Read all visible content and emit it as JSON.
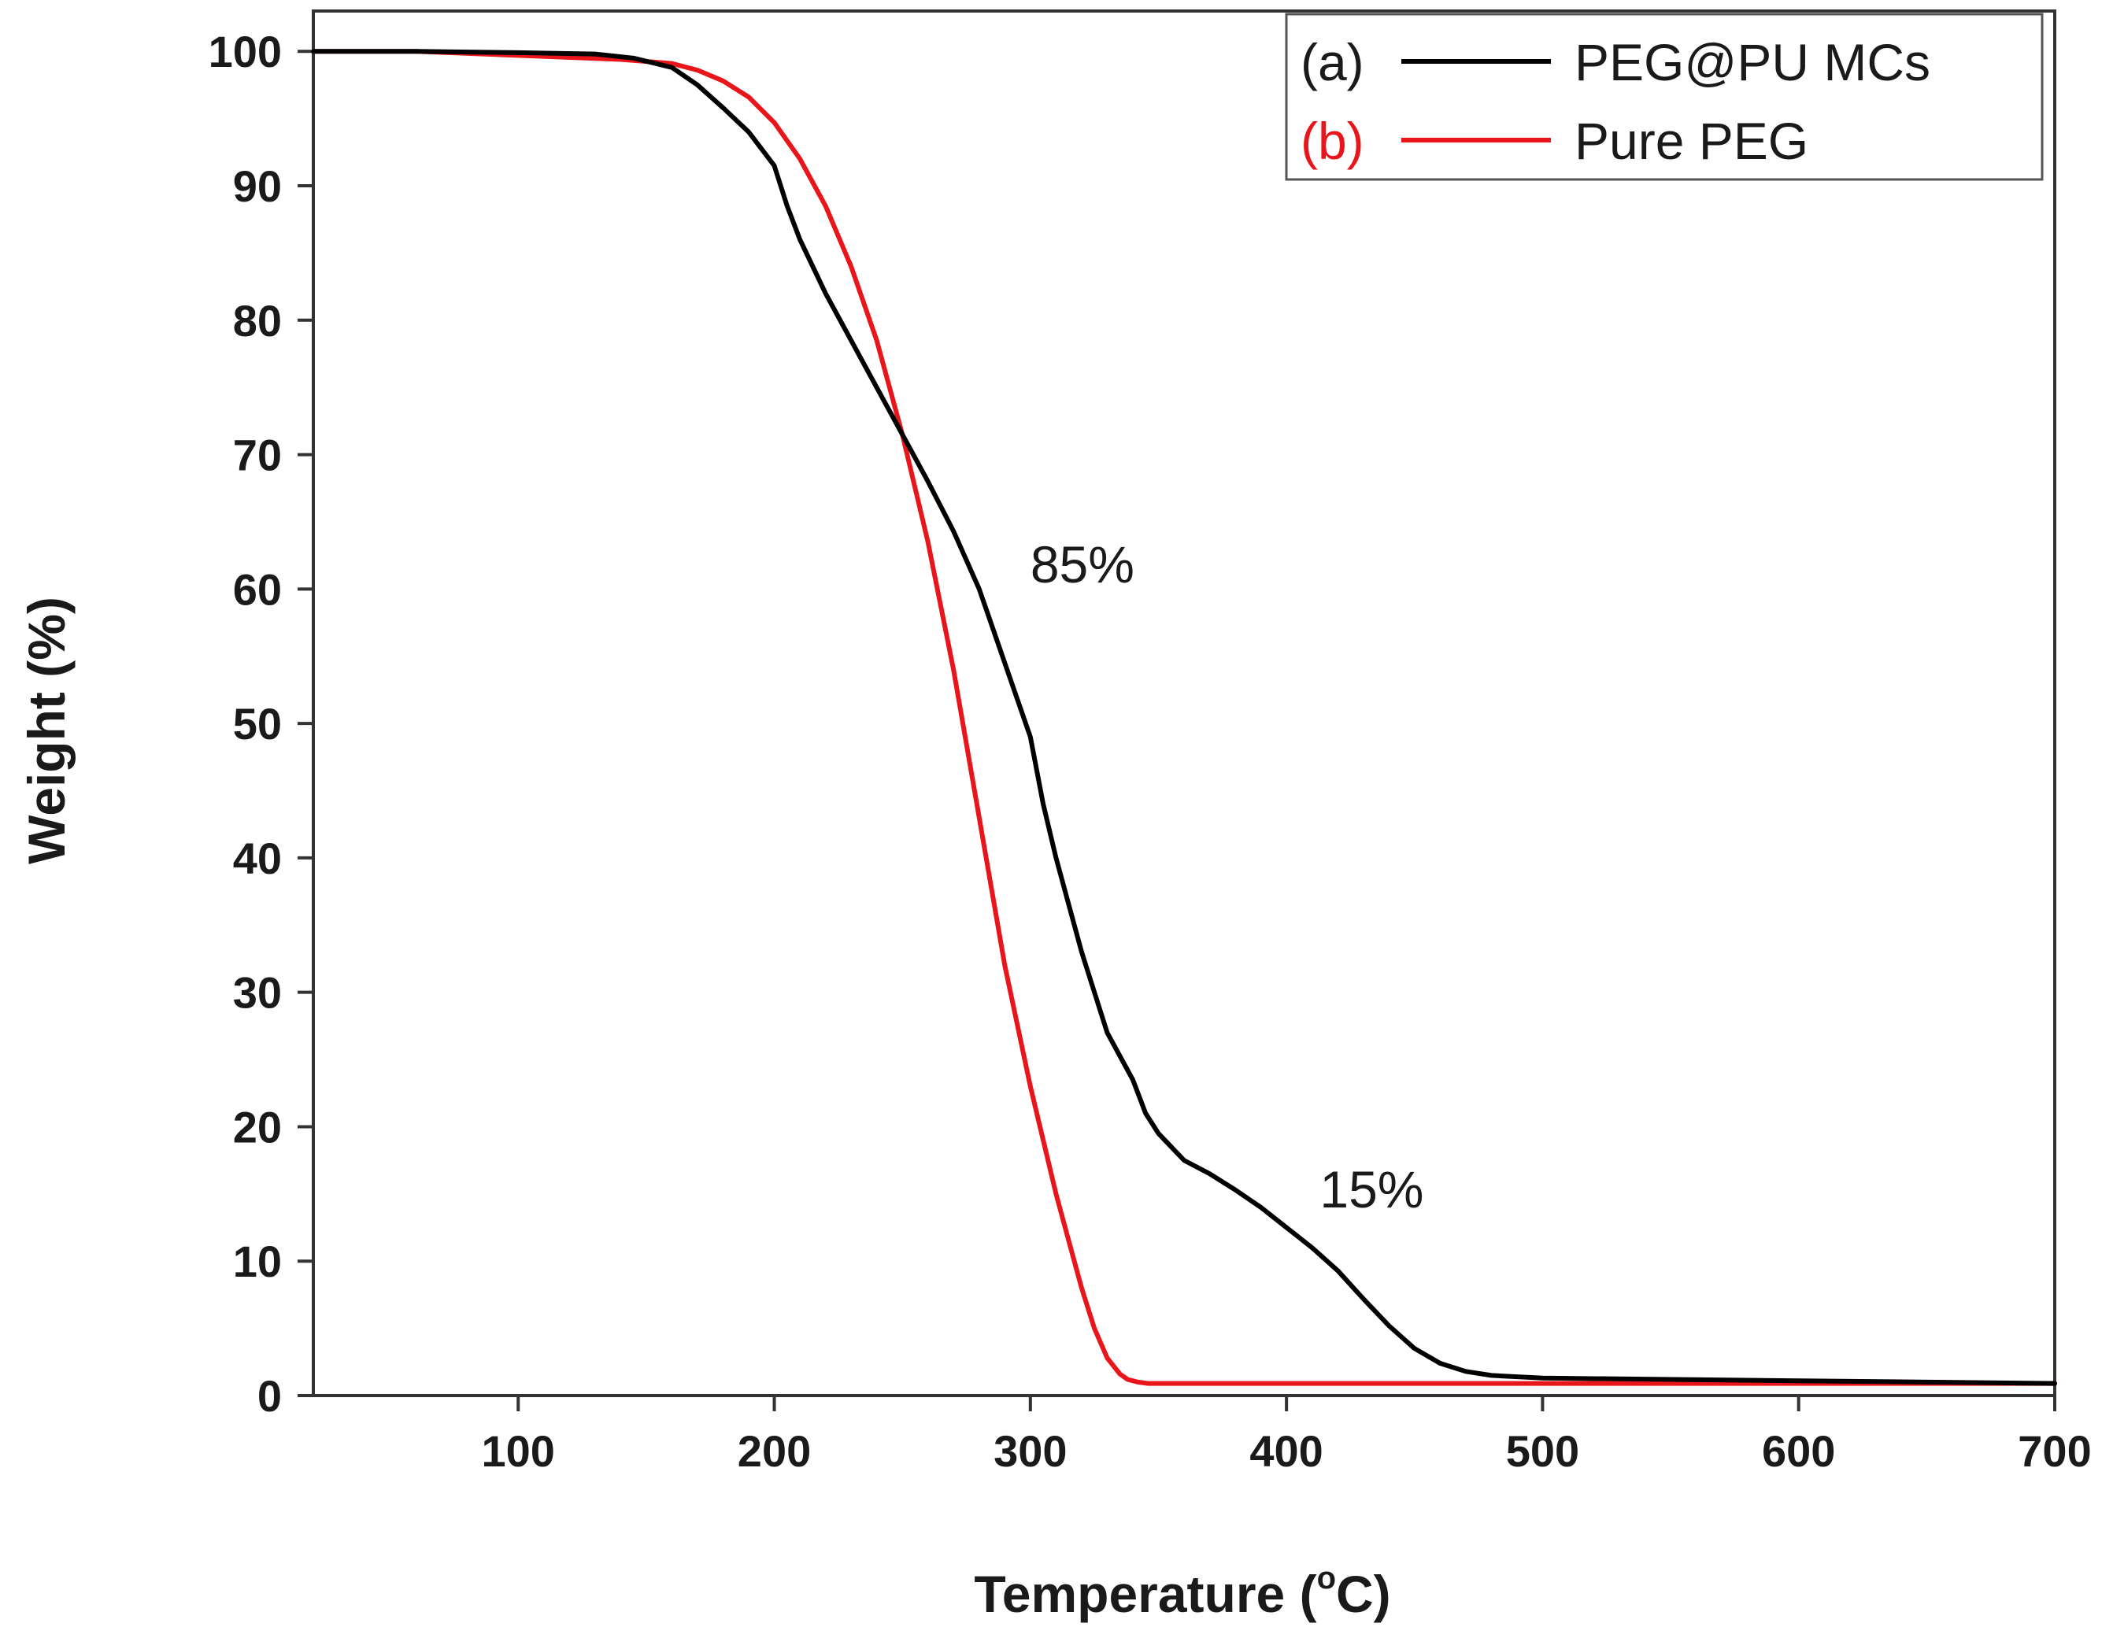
{
  "chart_data": {
    "type": "line",
    "title": "",
    "xlabel": "Temperature (",
    "xlabel_sup": "o",
    "xlabel_tail": "C)",
    "ylabel": "Weight (%)",
    "xlim": [
      20,
      700
    ],
    "ylim": [
      0,
      103
    ],
    "xticks": [
      100,
      200,
      300,
      400,
      500,
      600,
      700
    ],
    "yticks": [
      0,
      10,
      20,
      30,
      40,
      50,
      60,
      70,
      80,
      90,
      100
    ],
    "grid": false,
    "legend_position": "top-right",
    "series": [
      {
        "tag": "(a)",
        "name": "PEG@PU MCs",
        "color": "#000000",
        "x": [
          20,
          60,
          100,
          130,
          145,
          160,
          170,
          180,
          190,
          200,
          205,
          210,
          220,
          230,
          240,
          250,
          260,
          270,
          280,
          290,
          300,
          305,
          310,
          320,
          330,
          340,
          345,
          350,
          360,
          370,
          380,
          390,
          400,
          410,
          420,
          430,
          440,
          450,
          460,
          470,
          480,
          500,
          550,
          600,
          650,
          700
        ],
        "y": [
          100,
          100,
          99.9,
          99.8,
          99.5,
          98.8,
          97.5,
          95.8,
          94,
          91.5,
          88.5,
          86,
          82,
          78.5,
          75,
          71.5,
          68,
          64.3,
          60,
          54.5,
          49,
          44,
          40,
          33,
          27,
          23.5,
          21,
          19.5,
          17.5,
          16.5,
          15.3,
          14,
          12.5,
          11,
          9.3,
          7.2,
          5.2,
          3.5,
          2.4,
          1.8,
          1.5,
          1.3,
          1.2,
          1.1,
          1.0,
          0.9
        ]
      },
      {
        "tag": "(b)",
        "name": "Pure PEG",
        "color": "#e8161b",
        "x": [
          20,
          60,
          100,
          140,
          160,
          170,
          180,
          190,
          200,
          210,
          220,
          230,
          240,
          250,
          260,
          270,
          280,
          290,
          300,
          305,
          310,
          315,
          320,
          325,
          330,
          335,
          338,
          342,
          346,
          360,
          400,
          500,
          600,
          700
        ],
        "y": [
          100,
          100,
          99.7,
          99.4,
          99.1,
          98.6,
          97.8,
          96.6,
          94.7,
          92,
          88.5,
          84,
          78.5,
          71.5,
          63.5,
          54,
          43,
          32,
          23,
          19,
          15,
          11.5,
          8,
          5,
          2.8,
          1.6,
          1.2,
          1.0,
          0.9,
          0.9,
          0.9,
          0.9,
          0.9,
          0.9
        ]
      }
    ],
    "annotations": [
      {
        "text": "85%",
        "x": 300,
        "y": 60.5
      },
      {
        "text": "15%",
        "x": 413,
        "y": 14
      }
    ]
  }
}
